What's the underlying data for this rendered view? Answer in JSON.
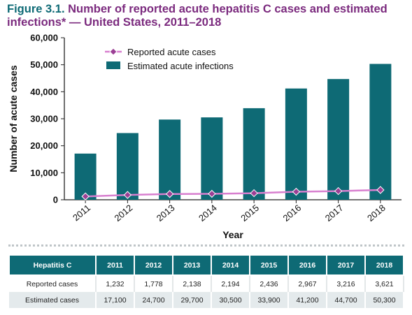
{
  "title": {
    "figure_label": "Figure 3.1.",
    "text": "Number of reported acute hepatitis C cases and estimated infections* — United States, 2011–2018"
  },
  "chart_data": {
    "type": "bar",
    "categories": [
      "2011",
      "2012",
      "2013",
      "2014",
      "2015",
      "2016",
      "2017",
      "2018"
    ],
    "series": [
      {
        "name": "Estimated acute infections",
        "type": "bar",
        "values": [
          17100,
          24700,
          29700,
          30500,
          33900,
          41200,
          44700,
          50300
        ]
      },
      {
        "name": "Reported acute cases",
        "type": "line",
        "values": [
          1232,
          1778,
          2138,
          2194,
          2436,
          2967,
          3216,
          3621
        ]
      }
    ],
    "xlabel": "Year",
    "ylabel": "Number of acute cases",
    "ylim": [
      0,
      60000
    ],
    "yticks": [
      "0",
      "10,000",
      "20,000",
      "30,000",
      "40,000",
      "50,000",
      "60,000"
    ],
    "ytick_values": [
      0,
      10000,
      20000,
      30000,
      40000,
      50000,
      60000
    ],
    "legend": [
      "Reported acute cases",
      "Estimated acute infections"
    ],
    "legend_position": "top-left",
    "grid": false,
    "colors": {
      "bar": "#0e6a75",
      "line": "#d87fcf",
      "marker": "#9b3f95"
    }
  },
  "table": {
    "header": [
      "Hepatitis C",
      "2011",
      "2012",
      "2013",
      "2014",
      "2015",
      "2016",
      "2017",
      "2018"
    ],
    "rows": [
      [
        "Reported cases",
        "1,232",
        "1,778",
        "2,138",
        "2,194",
        "2,436",
        "2,967",
        "3,216",
        "3,621"
      ],
      [
        "Estimated cases",
        "17,100",
        "24,700",
        "29,700",
        "30,500",
        "33,900",
        "41,200",
        "44,700",
        "50,300"
      ]
    ]
  }
}
